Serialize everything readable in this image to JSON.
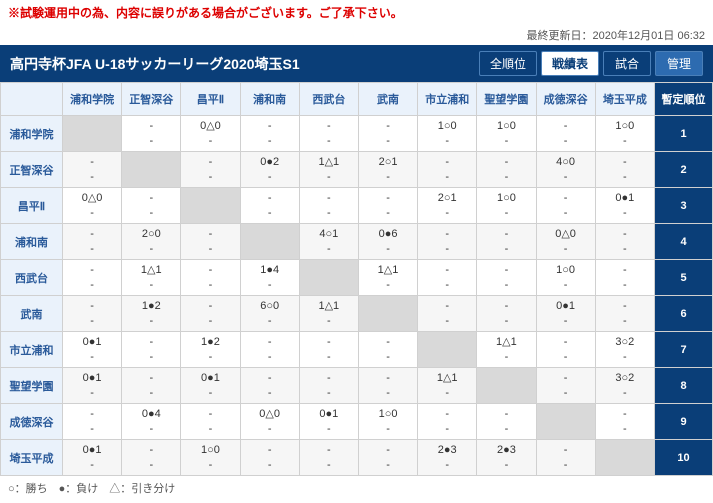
{
  "notice": "※試験運用中の為、内容に誤りがある場合がございます。ご了承下さい。",
  "updated_label": "最終更新日：",
  "updated_value": "2020年12月01日 06:32",
  "title": "高円寺杯JFA U-18サッカーリーグ2020埼玉S1",
  "buttons": {
    "all_rank": "全順位",
    "results_table": "戦績表",
    "match": "試合",
    "manage": "管理"
  },
  "rank_header": "暫定順位",
  "teams": [
    "浦和学院",
    "正智深谷",
    "昌平Ⅱ",
    "浦和南",
    "西武台",
    "武南",
    "市立浦和",
    "聖望学園",
    "成徳深谷",
    "埼玉平成"
  ],
  "legend": "○：勝ち　●：負け　△：引き分け",
  "grid": [
    [
      null,
      {
        "t": "-",
        "b": "-"
      },
      {
        "t": "0△0",
        "b": "-"
      },
      {
        "t": "-",
        "b": "-"
      },
      {
        "t": "-",
        "b": "-"
      },
      {
        "t": "-",
        "b": "-"
      },
      {
        "t": "1○0",
        "b": "-"
      },
      {
        "t": "1○0",
        "b": "-"
      },
      {
        "t": "-",
        "b": "-"
      },
      {
        "t": "1○0",
        "b": "-"
      }
    ],
    [
      {
        "t": "-",
        "b": "-"
      },
      null,
      {
        "t": "-",
        "b": "-"
      },
      {
        "t": "0●2",
        "b": "-"
      },
      {
        "t": "1△1",
        "b": "-"
      },
      {
        "t": "2○1",
        "b": "-"
      },
      {
        "t": "-",
        "b": "-"
      },
      {
        "t": "-",
        "b": "-"
      },
      {
        "t": "4○0",
        "b": "-"
      },
      {
        "t": "-",
        "b": "-"
      }
    ],
    [
      {
        "t": "0△0",
        "b": "-"
      },
      {
        "t": "-",
        "b": "-"
      },
      null,
      {
        "t": "-",
        "b": "-"
      },
      {
        "t": "-",
        "b": "-"
      },
      {
        "t": "-",
        "b": "-"
      },
      {
        "t": "2○1",
        "b": "-"
      },
      {
        "t": "1○0",
        "b": "-"
      },
      {
        "t": "-",
        "b": "-"
      },
      {
        "t": "0●1",
        "b": "-"
      }
    ],
    [
      {
        "t": "-",
        "b": "-"
      },
      {
        "t": "2○0",
        "b": "-"
      },
      {
        "t": "-",
        "b": "-"
      },
      null,
      {
        "t": "4○1",
        "b": "-"
      },
      {
        "t": "0●6",
        "b": "-"
      },
      {
        "t": "-",
        "b": "-"
      },
      {
        "t": "-",
        "b": "-"
      },
      {
        "t": "0△0",
        "b": "-"
      },
      {
        "t": "-",
        "b": "-"
      }
    ],
    [
      {
        "t": "-",
        "b": "-"
      },
      {
        "t": "1△1",
        "b": "-"
      },
      {
        "t": "-",
        "b": "-"
      },
      {
        "t": "1●4",
        "b": "-"
      },
      null,
      {
        "t": "1△1",
        "b": "-"
      },
      {
        "t": "-",
        "b": "-"
      },
      {
        "t": "-",
        "b": "-"
      },
      {
        "t": "1○0",
        "b": "-"
      },
      {
        "t": "-",
        "b": "-"
      }
    ],
    [
      {
        "t": "-",
        "b": "-"
      },
      {
        "t": "1●2",
        "b": "-"
      },
      {
        "t": "-",
        "b": "-"
      },
      {
        "t": "6○0",
        "b": "-"
      },
      {
        "t": "1△1",
        "b": "-"
      },
      null,
      {
        "t": "-",
        "b": "-"
      },
      {
        "t": "-",
        "b": "-"
      },
      {
        "t": "0●1",
        "b": "-"
      },
      {
        "t": "-",
        "b": "-"
      }
    ],
    [
      {
        "t": "0●1",
        "b": "-"
      },
      {
        "t": "-",
        "b": "-"
      },
      {
        "t": "1●2",
        "b": "-"
      },
      {
        "t": "-",
        "b": "-"
      },
      {
        "t": "-",
        "b": "-"
      },
      {
        "t": "-",
        "b": "-"
      },
      null,
      {
        "t": "1△1",
        "b": "-"
      },
      {
        "t": "-",
        "b": "-"
      },
      {
        "t": "3○2",
        "b": "-"
      }
    ],
    [
      {
        "t": "0●1",
        "b": "-"
      },
      {
        "t": "-",
        "b": "-"
      },
      {
        "t": "0●1",
        "b": "-"
      },
      {
        "t": "-",
        "b": "-"
      },
      {
        "t": "-",
        "b": "-"
      },
      {
        "t": "-",
        "b": "-"
      },
      {
        "t": "1△1",
        "b": "-"
      },
      null,
      {
        "t": "-",
        "b": "-"
      },
      {
        "t": "3○2",
        "b": "-"
      }
    ],
    [
      {
        "t": "-",
        "b": "-"
      },
      {
        "t": "0●4",
        "b": "-"
      },
      {
        "t": "-",
        "b": "-"
      },
      {
        "t": "0△0",
        "b": "-"
      },
      {
        "t": "0●1",
        "b": "-"
      },
      {
        "t": "1○0",
        "b": "-"
      },
      {
        "t": "-",
        "b": "-"
      },
      {
        "t": "-",
        "b": "-"
      },
      null,
      {
        "t": "-",
        "b": "-"
      }
    ],
    [
      {
        "t": "0●1",
        "b": "-"
      },
      {
        "t": "-",
        "b": "-"
      },
      {
        "t": "1○0",
        "b": "-"
      },
      {
        "t": "-",
        "b": "-"
      },
      {
        "t": "-",
        "b": "-"
      },
      {
        "t": "-",
        "b": "-"
      },
      {
        "t": "2●3",
        "b": "-"
      },
      {
        "t": "2●3",
        "b": "-"
      },
      {
        "t": "-",
        "b": "-"
      },
      null
    ]
  ],
  "ranks": [
    "1",
    "2",
    "3",
    "4",
    "5",
    "6",
    "7",
    "8",
    "9",
    "10"
  ]
}
